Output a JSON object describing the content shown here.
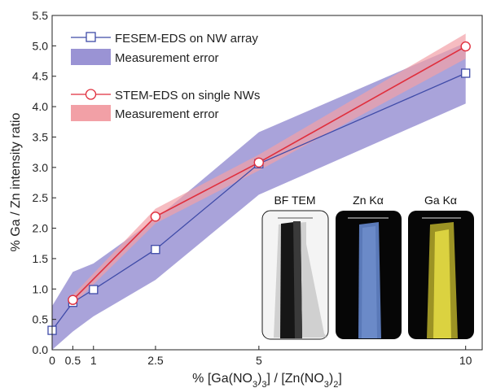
{
  "chart_data": {
    "type": "line",
    "ylabel": "% Ga / Zn intensity ratio",
    "xlabel_parts": {
      "prefix": "% [Ga(NO",
      "sub1": "3",
      "mid": ")",
      "sub2": "3",
      "mid2": "] / [Zn(NO",
      "sub3": "3",
      "mid3": ")",
      "sub4": "2",
      "suffix": "]"
    },
    "xlim": [
      0,
      10.4
    ],
    "ylim": [
      0,
      5.5
    ],
    "xticks": [
      0,
      0.5,
      1,
      2.5,
      5,
      10
    ],
    "xtick_labels": [
      "0",
      "0.5",
      "1",
      "2.5",
      "5",
      "10"
    ],
    "yticks": [
      0.0,
      0.5,
      1.0,
      1.5,
      2.0,
      2.5,
      3.0,
      3.5,
      4.0,
      4.5,
      5.0,
      5.5
    ],
    "ytick_labels": [
      "0.0",
      "0.5",
      "1.0",
      "1.5",
      "2.0",
      "2.5",
      "3.0",
      "3.5",
      "4.0",
      "4.5",
      "5.0",
      "5.5"
    ],
    "series": [
      {
        "name": "FESEM-EDS on NW array",
        "marker": "square",
        "color": "#3f4ba8",
        "x": [
          0,
          0.5,
          1,
          2.5,
          5,
          10
        ],
        "y": [
          0.32,
          0.78,
          0.99,
          1.65,
          3.06,
          4.55
        ],
        "error_name": "Measurement error",
        "error_color": "#9a93d4",
        "error_lower": [
          0.0,
          0.3,
          0.55,
          1.15,
          2.55,
          4.05
        ],
        "error_upper": [
          0.72,
          1.28,
          1.42,
          2.15,
          3.58,
          5.05
        ]
      },
      {
        "name": "STEM-EDS on single NWs",
        "marker": "circle",
        "color": "#e02f3d",
        "x": [
          0.5,
          2.5,
          5,
          10
        ],
        "y": [
          0.82,
          2.19,
          3.08,
          4.99
        ],
        "error_name": "Measurement error",
        "error_color": "#f2a0a6",
        "error_lower": [
          0.74,
          2.08,
          2.95,
          4.79
        ],
        "error_upper": [
          0.9,
          2.32,
          3.21,
          5.2
        ]
      }
    ],
    "legend_position": "top-left",
    "inset_images": [
      {
        "title": "BF TEM"
      },
      {
        "title": "Zn Kα"
      },
      {
        "title": "Ga Kα"
      }
    ]
  }
}
